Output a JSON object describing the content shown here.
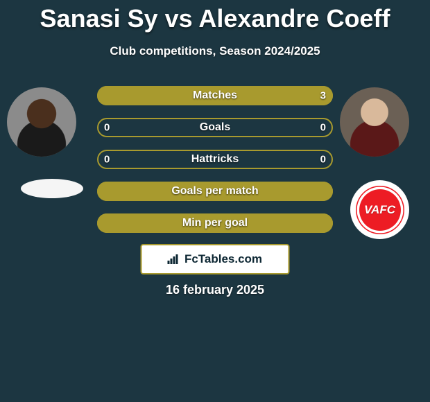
{
  "title": "Sanasi Sy vs Alexandre Coeff",
  "subtitle": "Club competitions, Season 2024/2025",
  "date": "16 february 2025",
  "attribution": "FcTables.com",
  "players": {
    "left_name": "Sanasi Sy",
    "right_name": "Alexandre Coeff"
  },
  "club_right_label": "VAFC",
  "colors": {
    "background": "#1c3641",
    "bar_fill": "#a89a2e",
    "bar_border": "#a89a2e",
    "text": "#ffffff",
    "attribution_bg": "#ffffff",
    "attribution_text": "#0d2733",
    "vafc_red": "#ed1c24"
  },
  "stats": [
    {
      "label": "Matches",
      "left_value": "",
      "right_value": "3",
      "left_pct": 0,
      "right_pct": 100
    },
    {
      "label": "Goals",
      "left_value": "0",
      "right_value": "0",
      "left_pct": 0,
      "right_pct": 0
    },
    {
      "label": "Hattricks",
      "left_value": "0",
      "right_value": "0",
      "left_pct": 0,
      "right_pct": 0
    },
    {
      "label": "Goals per match",
      "left_value": "",
      "right_value": "",
      "left_pct": 100,
      "right_pct": 0
    },
    {
      "label": "Min per goal",
      "left_value": "",
      "right_value": "",
      "left_pct": 100,
      "right_pct": 0
    }
  ]
}
